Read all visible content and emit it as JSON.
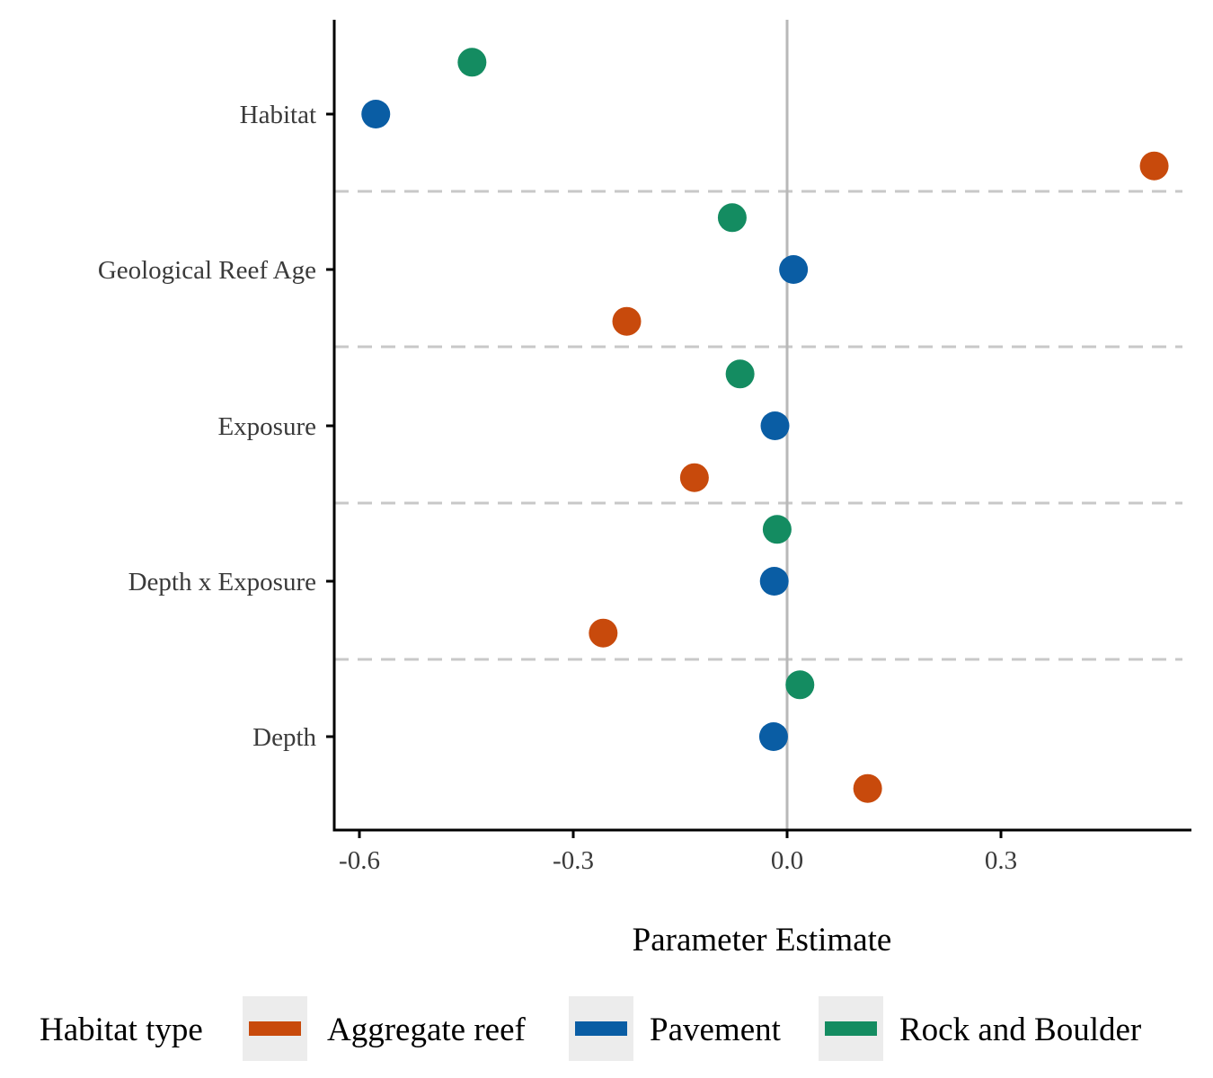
{
  "chart_data": {
    "type": "scatter",
    "title": "",
    "xlabel": "Parameter Estimate",
    "ylabel": "",
    "xlim": [
      -0.6,
      0.56
    ],
    "x_ticks": [
      "-0.6",
      "-0.3",
      "0.0",
      "0.3"
    ],
    "x_tick_values": [
      -0.6,
      -0.3,
      0.0,
      0.3
    ],
    "categories": [
      "Habitat",
      "Geological Reef Age",
      "Exposure",
      "Depth x Exposure",
      "Depth"
    ],
    "grid": false,
    "reference_line_x": 0,
    "legend": {
      "title": "Habitat type",
      "position": "bottom"
    },
    "series": [
      {
        "name": "Aggregate reef",
        "color": "#C84A0C",
        "values": [
          0.515,
          -0.225,
          -0.13,
          -0.258,
          0.113
        ]
      },
      {
        "name": "Pavement",
        "color": "#0A5DA4",
        "values": [
          -0.577,
          0.009,
          -0.017,
          -0.018,
          -0.019
        ]
      },
      {
        "name": "Rock and Boulder",
        "color": "#148C61",
        "values": [
          -0.442,
          -0.077,
          -0.066,
          -0.014,
          0.018
        ]
      }
    ]
  }
}
